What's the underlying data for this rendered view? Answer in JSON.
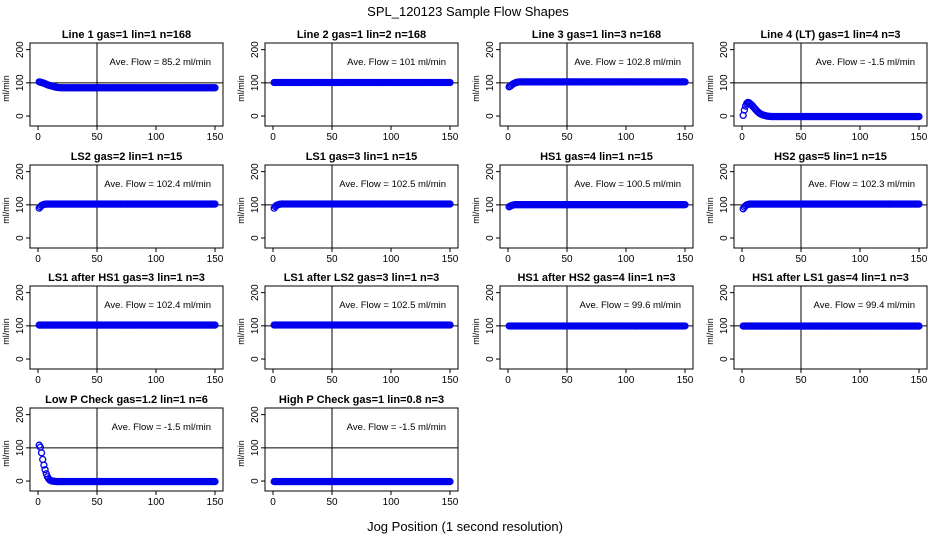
{
  "title": "SPL_120123  Sample Flow Shapes",
  "xlabel": "Jog Position (1 second resolution)",
  "chart_data": {
    "type": "scatter",
    "title": "SPL_120123  Sample Flow Shapes",
    "xlabel": "Jog Position (1 second resolution)",
    "ylabel": "ml/min",
    "xlim": [
      0,
      150
    ],
    "ylim": [
      -30,
      220
    ],
    "x_ticks": [
      0,
      50,
      100,
      150
    ],
    "y_ticks": [
      0,
      100,
      200
    ],
    "vline_x": 50,
    "hline_y": 100,
    "point_color": "#0000ee",
    "panels": [
      {
        "title": "Line 1 gas=1 lin=1 n=168",
        "annotation": "Ave. Flow =  85.2  ml/min",
        "points": [
          [
            1,
            103
          ],
          [
            2,
            102
          ],
          [
            3,
            101
          ],
          [
            4,
            100
          ],
          [
            5,
            99
          ],
          [
            6,
            97
          ],
          [
            7,
            96
          ],
          [
            8,
            94
          ],
          [
            9,
            93
          ],
          [
            10,
            92
          ],
          [
            11,
            91
          ],
          [
            12,
            90
          ],
          [
            13,
            89
          ],
          [
            14,
            88
          ],
          [
            15,
            87
          ],
          [
            16,
            86.5
          ],
          [
            17,
            86
          ],
          [
            18,
            85.5
          ],
          [
            20,
            85.3
          ],
          [
            25,
            85.2
          ],
          [
            150,
            85.2
          ]
        ]
      },
      {
        "title": "Line 2 gas=1 lin=2 n=168",
        "annotation": "Ave. Flow =  101  ml/min",
        "points": [
          [
            1,
            101
          ],
          [
            150,
            101
          ]
        ]
      },
      {
        "title": "Line 3 gas=1 lin=3 n=168",
        "annotation": "Ave. Flow =  102.8  ml/min",
        "points": [
          [
            1,
            88
          ],
          [
            2,
            90
          ],
          [
            3,
            93
          ],
          [
            4,
            96
          ],
          [
            5,
            98
          ],
          [
            6,
            100
          ],
          [
            7,
            101
          ],
          [
            8,
            102
          ],
          [
            9,
            102.5
          ],
          [
            10,
            102.8
          ],
          [
            150,
            102.8
          ]
        ]
      },
      {
        "title": "Line 4 (LT) gas=1 lin=4 n=3",
        "annotation": "Ave. Flow =  -1.5  ml/min",
        "points": [
          [
            1,
            2
          ],
          [
            2,
            18
          ],
          [
            3,
            30
          ],
          [
            4,
            38
          ],
          [
            5,
            41
          ],
          [
            6,
            40
          ],
          [
            7,
            37
          ],
          [
            8,
            34
          ],
          [
            9,
            30
          ],
          [
            10,
            26
          ],
          [
            11,
            22
          ],
          [
            12,
            18
          ],
          [
            13,
            14
          ],
          [
            14,
            11
          ],
          [
            15,
            8
          ],
          [
            16,
            6
          ],
          [
            17,
            4
          ],
          [
            18,
            3
          ],
          [
            19,
            2
          ],
          [
            20,
            1
          ],
          [
            21,
            0
          ],
          [
            23,
            -1
          ],
          [
            25,
            -1.5
          ],
          [
            150,
            -1.5
          ]
        ]
      },
      {
        "title": "LS2 gas=2 lin=1 n=15",
        "annotation": "Ave. Flow =  102.4  ml/min",
        "points": [
          [
            1,
            90
          ],
          [
            2,
            94
          ],
          [
            3,
            98
          ],
          [
            4,
            100
          ],
          [
            5,
            101
          ],
          [
            6,
            102
          ],
          [
            7,
            102.4
          ],
          [
            150,
            102.4
          ]
        ]
      },
      {
        "title": "LS1 gas=3 lin=1 n=15",
        "annotation": "Ave. Flow =  102.5  ml/min",
        "points": [
          [
            1,
            90
          ],
          [
            2,
            95
          ],
          [
            3,
            98
          ],
          [
            4,
            100
          ],
          [
            5,
            101
          ],
          [
            6,
            102
          ],
          [
            7,
            102.5
          ],
          [
            150,
            102.5
          ]
        ]
      },
      {
        "title": "HS1 gas=4 lin=1 n=15",
        "annotation": "Ave. Flow =  100.5  ml/min",
        "points": [
          [
            1,
            94
          ],
          [
            2,
            96
          ],
          [
            3,
            98
          ],
          [
            4,
            99
          ],
          [
            5,
            100
          ],
          [
            6,
            100.5
          ],
          [
            150,
            100.5
          ]
        ]
      },
      {
        "title": "HS2 gas=5 lin=1 n=15",
        "annotation": "Ave. Flow =  102.3  ml/min",
        "points": [
          [
            1,
            88
          ],
          [
            2,
            93
          ],
          [
            3,
            97
          ],
          [
            4,
            100
          ],
          [
            5,
            101
          ],
          [
            6,
            102
          ],
          [
            7,
            102.3
          ],
          [
            150,
            102.3
          ]
        ]
      },
      {
        "title": "LS1 after HS1 gas=3 lin=1 n=3",
        "annotation": "Ave. Flow =  102.4  ml/min",
        "points": [
          [
            1,
            102.4
          ],
          [
            150,
            102.4
          ]
        ]
      },
      {
        "title": "LS1 after LS2 gas=3 lin=1 n=3",
        "annotation": "Ave. Flow =  102.5  ml/min",
        "points": [
          [
            1,
            102.5
          ],
          [
            150,
            102.5
          ]
        ]
      },
      {
        "title": "HS1 after HS2 gas=4 lin=1 n=3",
        "annotation": "Ave. Flow =  99.6  ml/min",
        "points": [
          [
            1,
            99.6
          ],
          [
            150,
            99.6
          ]
        ]
      },
      {
        "title": "HS1 after LS1 gas=4 lin=1 n=3",
        "annotation": "Ave. Flow =  99.4  ml/min",
        "points": [
          [
            1,
            99.4
          ],
          [
            150,
            99.4
          ]
        ]
      },
      {
        "title": "Low P Check gas=1.2 lin=1 n=6",
        "annotation": "Ave. Flow =  -1.5  ml/min",
        "points": [
          [
            1,
            108
          ],
          [
            2,
            102
          ],
          [
            3,
            85
          ],
          [
            4,
            65
          ],
          [
            5,
            48
          ],
          [
            6,
            34
          ],
          [
            7,
            22
          ],
          [
            8,
            13
          ],
          [
            9,
            7
          ],
          [
            10,
            3
          ],
          [
            11,
            1
          ],
          [
            12,
            0
          ],
          [
            14,
            -1
          ],
          [
            16,
            -1.5
          ],
          [
            150,
            -1.5
          ]
        ]
      },
      {
        "title": "High P Check gas=1 lin=0.8 n=3",
        "annotation": "Ave. Flow =  -1.5  ml/min",
        "points": [
          [
            1,
            -1.5
          ],
          [
            150,
            -1.5
          ]
        ]
      }
    ]
  }
}
